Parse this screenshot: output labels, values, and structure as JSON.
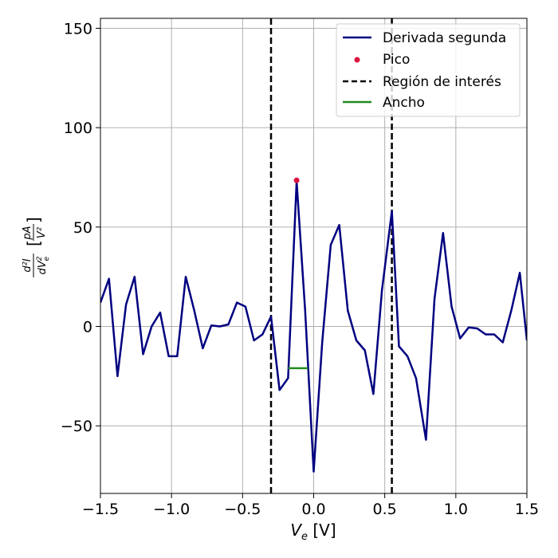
{
  "chart_data": {
    "type": "line",
    "xlabel_main": "V",
    "xlabel_sub": "e",
    "xlabel_unit": " [V]",
    "ylabel_num": "d²I",
    "ylabel_den_main": "dV",
    "ylabel_den_exp": "2",
    "ylabel_den_sub": "e",
    "ylabel_unit_num": "pA",
    "ylabel_unit_den": "V²",
    "xlim": [
      -1.5,
      1.5
    ],
    "ylim": [
      -84,
      155
    ],
    "x_ticks": [
      -1.5,
      -1.0,
      -0.5,
      0.0,
      0.5,
      1.0,
      1.5
    ],
    "x_tick_labels": [
      "−1.5",
      "−1.0",
      "−0.5",
      "0.0",
      "0.5",
      "1.0",
      "1.5"
    ],
    "y_ticks": [
      -50,
      0,
      50,
      100,
      150
    ],
    "y_tick_labels": [
      "−50",
      "0",
      "50",
      "100",
      "150"
    ],
    "grid": true,
    "legend_position": "top-right",
    "legend": {
      "series_label": "Derivada segunda",
      "peak_label": "Pico",
      "region_label": "Región de interés",
      "width_label": "Ancho"
    },
    "series": [
      {
        "color": "#000080",
        "x": [
          -1.5,
          -1.44,
          -1.38,
          -1.32,
          -1.26,
          -1.2,
          -1.14,
          -1.08,
          -1.02,
          -0.96,
          -0.9,
          -0.84,
          -0.78,
          -0.72,
          -0.66,
          -0.6,
          -0.54,
          -0.48,
          -0.42,
          -0.36,
          -0.3,
          -0.24,
          -0.18,
          -0.12,
          -0.06,
          0.0,
          0.06,
          0.12,
          0.18,
          0.24,
          0.3,
          0.36,
          0.42,
          0.48,
          0.55,
          0.6,
          0.66,
          0.72,
          0.79,
          0.85,
          0.91,
          0.97,
          1.03,
          1.09,
          1.15,
          1.21,
          1.27,
          1.33,
          1.39,
          1.45,
          1.5
        ],
        "y": [
          12,
          24,
          -25,
          11,
          25,
          -14,
          0,
          7,
          -15,
          -15,
          25,
          8,
          -11,
          0.5,
          0,
          1,
          12,
          10,
          -7,
          -4,
          5,
          -32,
          -26,
          73,
          8,
          -73,
          -8,
          41,
          51,
          8,
          -7,
          -12,
          -34,
          18,
          58,
          -10,
          -15,
          -26,
          -57,
          14,
          47,
          10,
          -6,
          -0.5,
          -1,
          -4,
          -4,
          -8,
          8,
          27,
          -7
        ]
      }
    ],
    "peak": {
      "x": -0.12,
      "y": 73.5,
      "color": "#dc143c"
    },
    "region": {
      "x_start": -0.3,
      "x_end": 0.55,
      "color": "#000000"
    },
    "width": {
      "x_start": -0.18,
      "x_end": -0.04,
      "y": -21,
      "color": "#228b22"
    }
  }
}
